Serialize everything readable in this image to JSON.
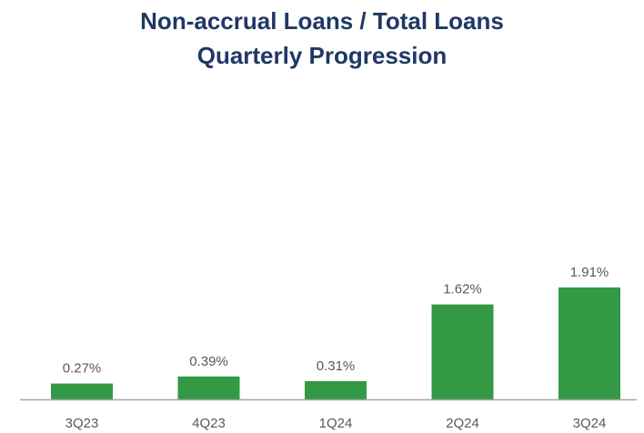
{
  "chart_data": {
    "type": "bar",
    "title": "Non-accrual Loans / Total Loans",
    "subtitle": "Quarterly Progression",
    "categories": [
      "3Q23",
      "4Q23",
      "1Q24",
      "2Q24",
      "3Q24"
    ],
    "values": [
      0.27,
      0.39,
      0.31,
      1.62,
      1.91
    ],
    "data_labels": [
      "0.27%",
      "0.39%",
      "0.31%",
      "1.62%",
      "1.91%"
    ],
    "ylim": [
      0,
      1.91
    ],
    "bar_color": "#339944",
    "axis_color": "#a6a6a6",
    "grid": false,
    "legend": "none"
  }
}
